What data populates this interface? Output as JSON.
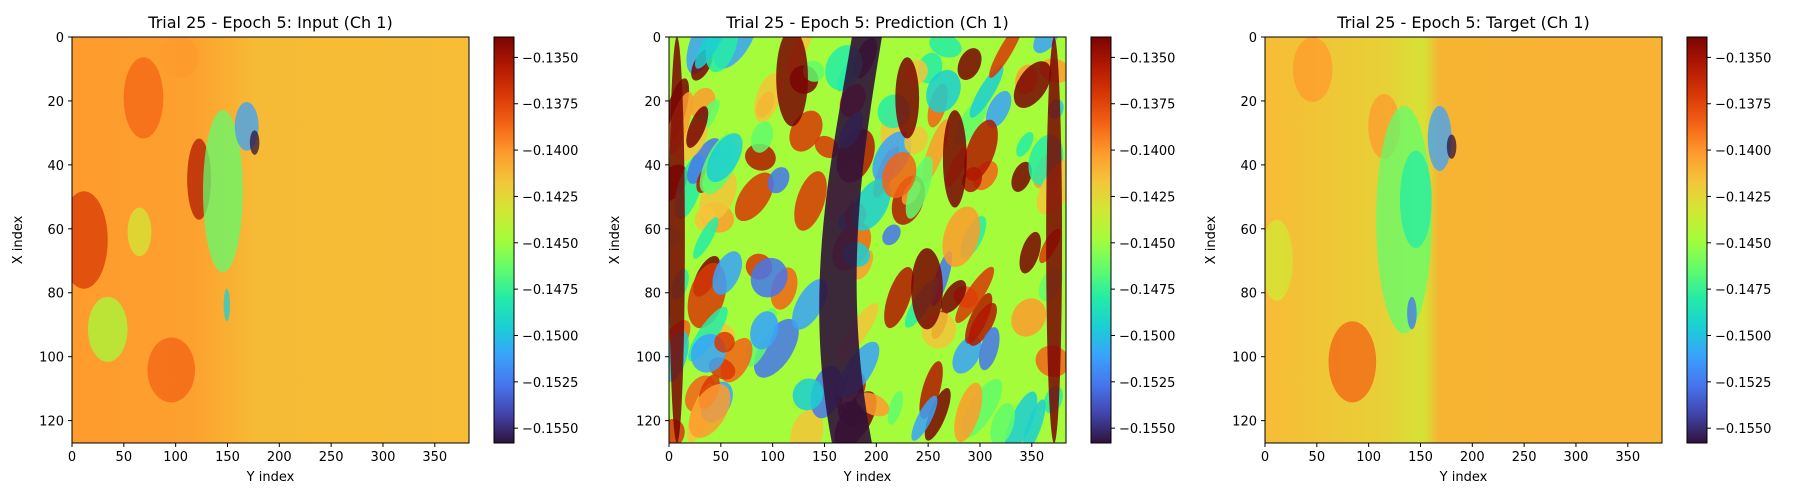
{
  "figure": {
    "colormap": "turbo",
    "colormap_stops": [
      "#30123b",
      "#4145ab",
      "#4675ed",
      "#39a2fc",
      "#1bcfd4",
      "#24eca6",
      "#61fc6c",
      "#a4fc3b",
      "#d1e834",
      "#f3c63a",
      "#fe9b2d",
      "#f36315",
      "#d93806",
      "#b11901",
      "#7a0403"
    ]
  },
  "chart_data": [
    {
      "type": "heatmap",
      "title": "Trial 25 - Epoch 5: Input (Ch 1)",
      "xlabel": "Y index",
      "ylabel": "X index",
      "x_ticks": [
        0,
        50,
        100,
        150,
        200,
        250,
        300,
        350
      ],
      "y_ticks": [
        0,
        20,
        40,
        60,
        80,
        100,
        120
      ],
      "xlim": [
        0,
        383
      ],
      "ylim": [
        127,
        0
      ],
      "colorbar_ticks": [
        "−0.1350",
        "−0.1375",
        "−0.1400",
        "−0.1425",
        "−0.1450",
        "−0.1475",
        "−0.1500",
        "−0.1525",
        "−0.1550"
      ],
      "colorbar_tick_values": [
        -0.135,
        -0.1375,
        -0.14,
        -0.1425,
        -0.145,
        -0.1475,
        -0.15,
        -0.1525,
        -0.155
      ],
      "vmin": -0.1558,
      "vmax": -0.1339
    },
    {
      "type": "heatmap",
      "title": "Trial 25 - Epoch 5: Prediction (Ch 1)",
      "xlabel": "Y index",
      "ylabel": "X index",
      "x_ticks": [
        0,
        50,
        100,
        150,
        200,
        250,
        300,
        350
      ],
      "y_ticks": [
        0,
        20,
        40,
        60,
        80,
        100,
        120
      ],
      "xlim": [
        0,
        383
      ],
      "ylim": [
        127,
        0
      ],
      "colorbar_ticks": [
        "−0.1350",
        "−0.1375",
        "−0.1400",
        "−0.1425",
        "−0.1450",
        "−0.1475",
        "−0.1500",
        "−0.1525",
        "−0.1550"
      ],
      "colorbar_tick_values": [
        -0.135,
        -0.1375,
        -0.14,
        -0.1425,
        -0.145,
        -0.1475,
        -0.15,
        -0.1525,
        -0.155
      ],
      "vmin": -0.1558,
      "vmax": -0.1339
    },
    {
      "type": "heatmap",
      "title": "Trial 25 - Epoch 5: Target (Ch 1)",
      "xlabel": "Y index",
      "ylabel": "X index",
      "x_ticks": [
        0,
        50,
        100,
        150,
        200,
        250,
        300,
        350
      ],
      "y_ticks": [
        0,
        20,
        40,
        60,
        80,
        100,
        120
      ],
      "xlim": [
        0,
        383
      ],
      "ylim": [
        127,
        0
      ],
      "colorbar_ticks": [
        "−0.1350",
        "−0.1375",
        "−0.1400",
        "−0.1425",
        "−0.1450",
        "−0.1475",
        "−0.1500",
        "−0.1525",
        "−0.1550"
      ],
      "colorbar_tick_values": [
        -0.135,
        -0.1375,
        -0.14,
        -0.1425,
        -0.145,
        -0.1475,
        -0.15,
        -0.1525,
        -0.155
      ],
      "vmin": -0.1558,
      "vmax": -0.1339
    }
  ]
}
